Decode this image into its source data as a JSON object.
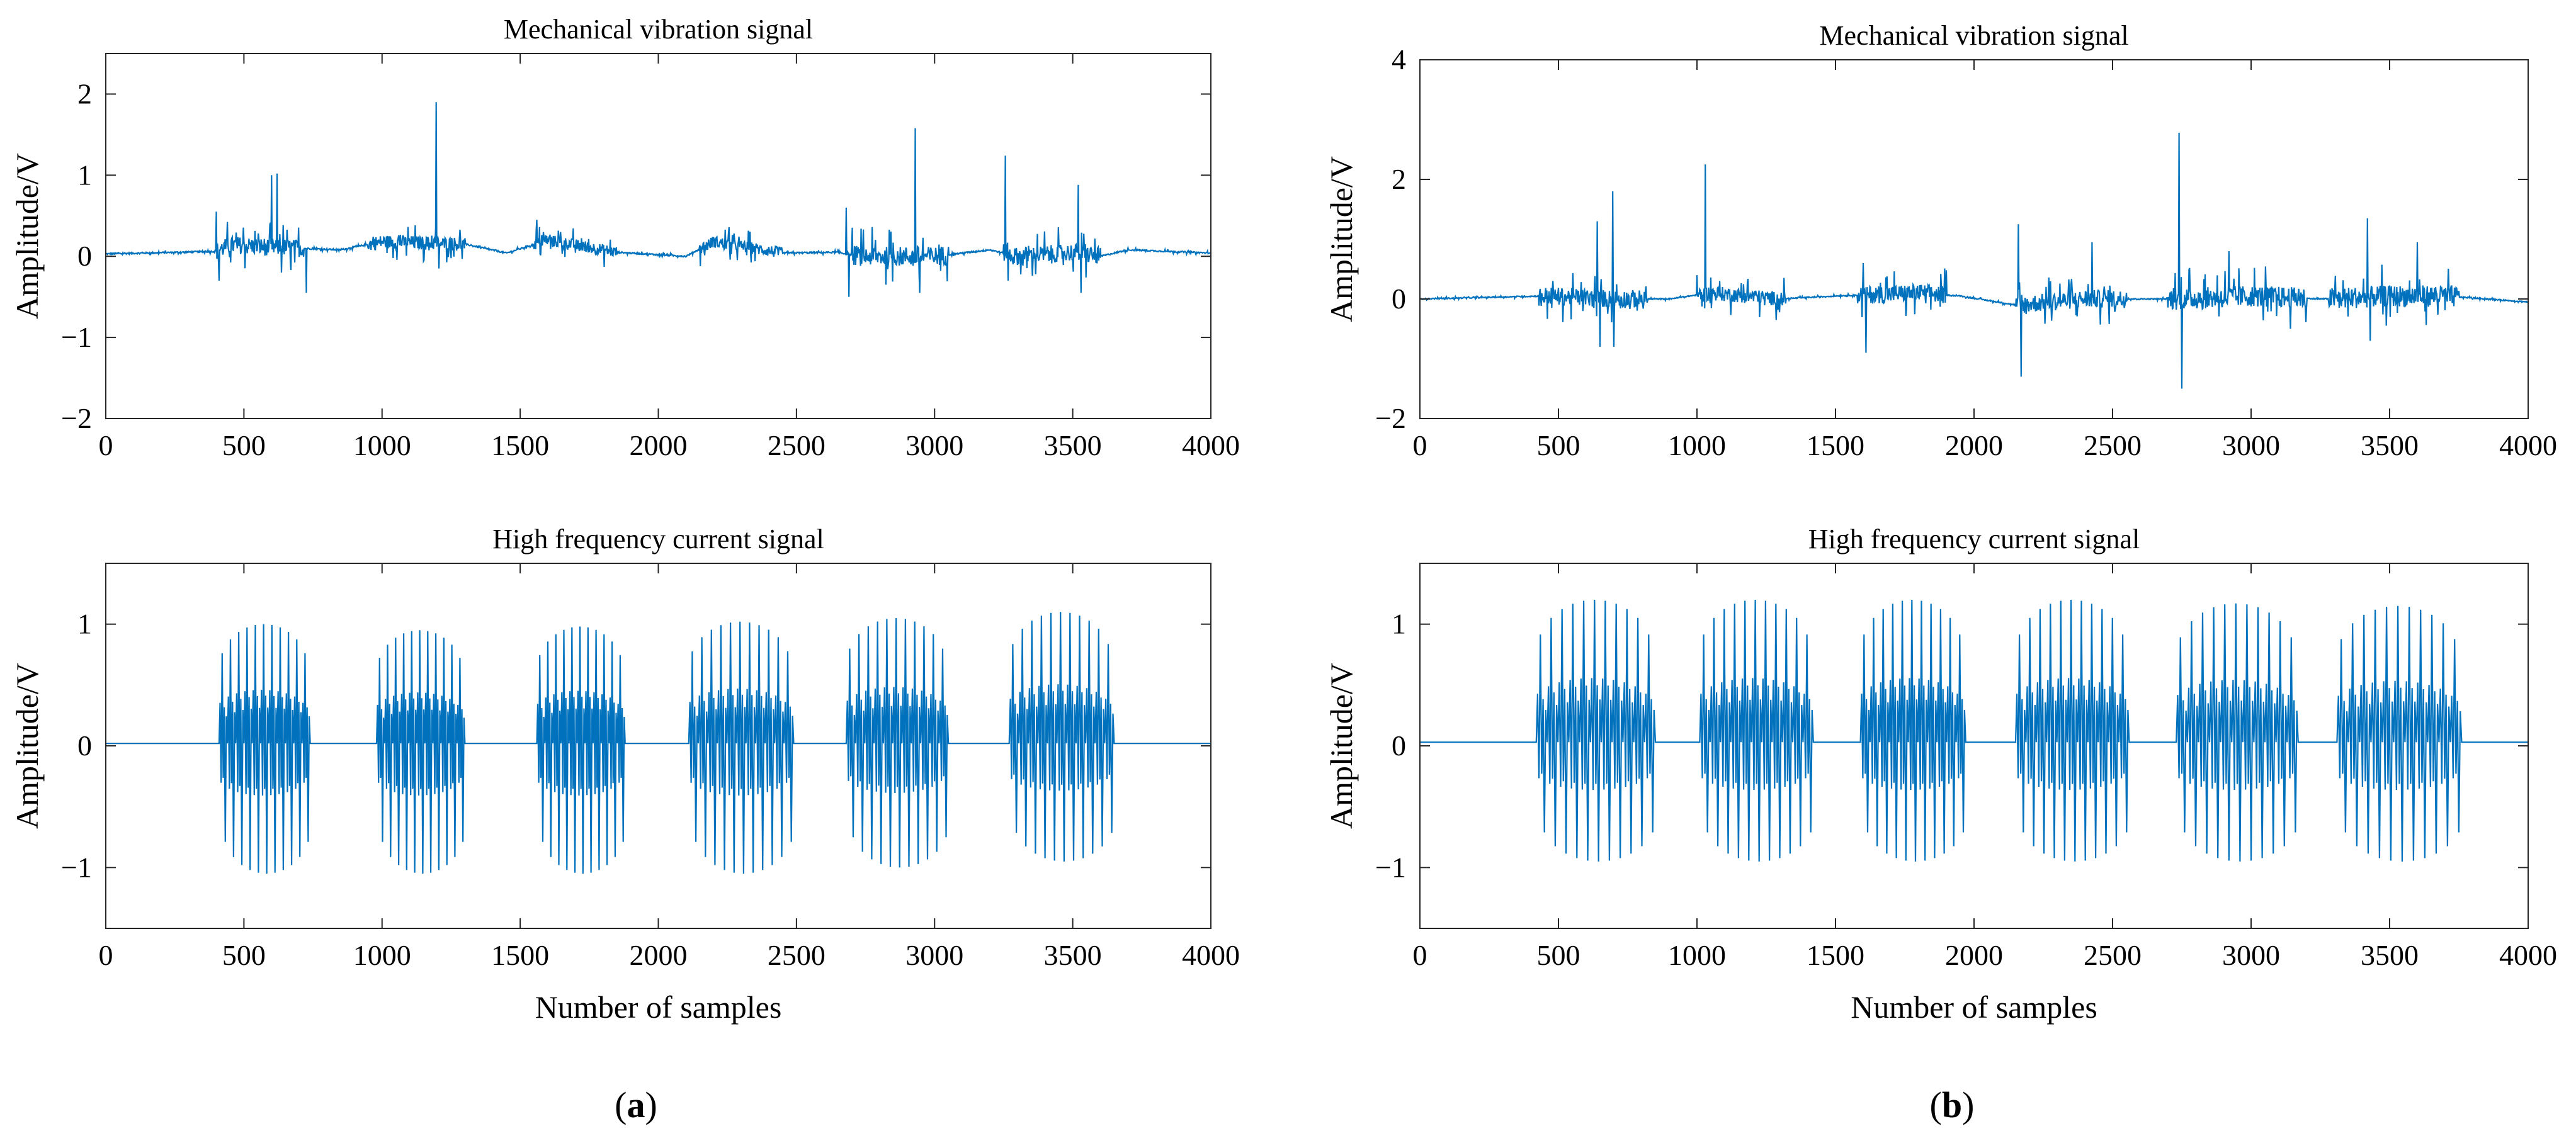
{
  "figure": {
    "panel_labels": [
      "(a)",
      "(b)"
    ]
  },
  "chart_data": [
    {
      "id": "a-top",
      "type": "line",
      "title": "Mechanical vibration signal",
      "xlabel": "",
      "ylabel": "Amplitude/V",
      "xlim": [
        0,
        4000
      ],
      "ylim": [
        -2,
        2.5
      ],
      "xticks": [
        0,
        500,
        1000,
        1500,
        2000,
        2500,
        3000,
        3500,
        4000
      ],
      "yticks": [
        -2,
        -1,
        0,
        1,
        2
      ],
      "color": "#0072BD",
      "series": [
        {
          "kind": "vibration",
          "baseline": [
            [
              0,
              0.03
            ],
            [
              400,
              0.06
            ],
            [
              450,
              0.14
            ],
            [
              700,
              0.1
            ],
            [
              850,
              0.08
            ],
            [
              1000,
              0.18
            ],
            [
              1300,
              0.15
            ],
            [
              1450,
              0.04
            ],
            [
              1600,
              0.2
            ],
            [
              1850,
              0.05
            ],
            [
              2100,
              0.0
            ],
            [
              2200,
              0.18
            ],
            [
              2450,
              0.04
            ],
            [
              2650,
              0.05
            ],
            [
              2720,
              0.0
            ],
            [
              3000,
              0.0
            ],
            [
              3200,
              0.08
            ],
            [
              3300,
              0.0
            ],
            [
              3500,
              0.05
            ],
            [
              3600,
              0.0
            ],
            [
              3700,
              0.08
            ],
            [
              4000,
              0.04
            ]
          ],
          "busy": [
            [
              400,
              720,
              0.18
            ],
            [
              950,
              1300,
              0.14
            ],
            [
              1550,
              1850,
              0.12
            ],
            [
              2150,
              2450,
              0.12
            ],
            [
              2700,
              3050,
              0.2
            ],
            [
              3250,
              3600,
              0.18
            ]
          ],
          "spikes": [
            [
              400,
              0.55
            ],
            [
              410,
              -0.3
            ],
            [
              600,
              1.0
            ],
            [
              620,
              1.02
            ],
            [
              635,
              -0.2
            ],
            [
              725,
              -0.45
            ],
            [
              1195,
              1.9
            ],
            [
              1205,
              -0.15
            ],
            [
              1560,
              0.45
            ],
            [
              2680,
              0.6
            ],
            [
              2690,
              -0.5
            ],
            [
              2930,
              1.58
            ],
            [
              2945,
              -0.45
            ],
            [
              3255,
              1.24
            ],
            [
              3265,
              -0.3
            ],
            [
              3520,
              0.88
            ],
            [
              3530,
              -0.45
            ]
          ]
        }
      ]
    },
    {
      "id": "a-bottom",
      "type": "line",
      "title": "High frequency current signal",
      "xlabel": "Number of samples",
      "ylabel": "Amplitude/V",
      "xlim": [
        0,
        4000
      ],
      "ylim": [
        -1.5,
        1.5
      ],
      "xticks": [
        0,
        500,
        1000,
        1500,
        2000,
        2500,
        3000,
        3500,
        4000
      ],
      "yticks": [
        -1,
        0,
        1
      ],
      "color": "#0072BD",
      "series": [
        {
          "kind": "bursts",
          "baseline": 0.02,
          "cycles": 11,
          "bursts": [
            [
              410,
              740,
              1.0,
              -1.05
            ],
            [
              980,
              1300,
              0.95,
              -1.05
            ],
            [
              1560,
              1880,
              0.98,
              -1.05
            ],
            [
              2110,
              2490,
              1.02,
              -1.05
            ],
            [
              2680,
              3050,
              1.05,
              -1.0
            ],
            [
              3270,
              3650,
              1.1,
              -0.95
            ]
          ]
        }
      ]
    },
    {
      "id": "b-top",
      "type": "line",
      "title": "Mechanical vibration signal",
      "xlabel": "",
      "ylabel": "Amplitude/V",
      "xlim": [
        0,
        4000
      ],
      "ylim": [
        -2,
        4
      ],
      "xticks": [
        0,
        500,
        1000,
        1500,
        2000,
        2500,
        3000,
        3500,
        4000
      ],
      "yticks": [
        -2,
        0,
        2,
        4
      ],
      "color": "#0072BD",
      "series": [
        {
          "kind": "vibration",
          "baseline": [
            [
              0,
              0.0
            ],
            [
              450,
              0.05
            ],
            [
              700,
              0.0
            ],
            [
              900,
              0.0
            ],
            [
              1050,
              0.1
            ],
            [
              1300,
              0.0
            ],
            [
              1500,
              0.05
            ],
            [
              1800,
              0.1
            ],
            [
              1950,
              0.05
            ],
            [
              2150,
              -0.1
            ],
            [
              2400,
              0.0
            ],
            [
              2600,
              0.0
            ],
            [
              2750,
              0.0
            ],
            [
              3000,
              0.05
            ],
            [
              3250,
              0.0
            ],
            [
              3500,
              0.05
            ],
            [
              3700,
              0.05
            ],
            [
              4000,
              -0.05
            ]
          ],
          "busy": [
            [
              430,
              820,
              0.25
            ],
            [
              1000,
              1320,
              0.2
            ],
            [
              1580,
              1900,
              0.25
            ],
            [
              2150,
              2550,
              0.25
            ],
            [
              2700,
              3200,
              0.3
            ],
            [
              3280,
              3750,
              0.3
            ]
          ],
          "spikes": [
            [
              640,
              1.3
            ],
            [
              650,
              -0.8
            ],
            [
              695,
              1.8
            ],
            [
              700,
              -0.8
            ],
            [
              1030,
              2.25
            ],
            [
              1600,
              0.6
            ],
            [
              1610,
              -0.9
            ],
            [
              2160,
              1.25
            ],
            [
              2170,
              -1.3
            ],
            [
              2425,
              0.95
            ],
            [
              2740,
              2.78
            ],
            [
              2750,
              -1.5
            ],
            [
              2920,
              0.8
            ],
            [
              3420,
              1.35
            ],
            [
              3430,
              -0.7
            ],
            [
              3600,
              0.95
            ]
          ]
        }
      ]
    },
    {
      "id": "b-bottom",
      "type": "line",
      "title": "High frequency current signal",
      "xlabel": "Number of samples",
      "ylabel": "Amplitude/V",
      "xlim": [
        0,
        4000
      ],
      "ylim": [
        -1.5,
        1.5
      ],
      "xticks": [
        0,
        500,
        1000,
        1500,
        2000,
        2500,
        3000,
        3500,
        4000
      ],
      "yticks": [
        -1,
        0,
        1
      ],
      "color": "#0072BD",
      "series": [
        {
          "kind": "bursts",
          "baseline": 0.03,
          "cycles": 11,
          "bursts": [
            [
              420,
              850,
              1.2,
              -0.95
            ],
            [
              1010,
              1420,
              1.2,
              -0.95
            ],
            [
              1590,
              1970,
              1.2,
              -0.95
            ],
            [
              2150,
              2560,
              1.2,
              -0.95
            ],
            [
              2730,
              3170,
              1.17,
              -0.95
            ],
            [
              3310,
              3760,
              1.15,
              -0.95
            ]
          ]
        }
      ]
    }
  ]
}
